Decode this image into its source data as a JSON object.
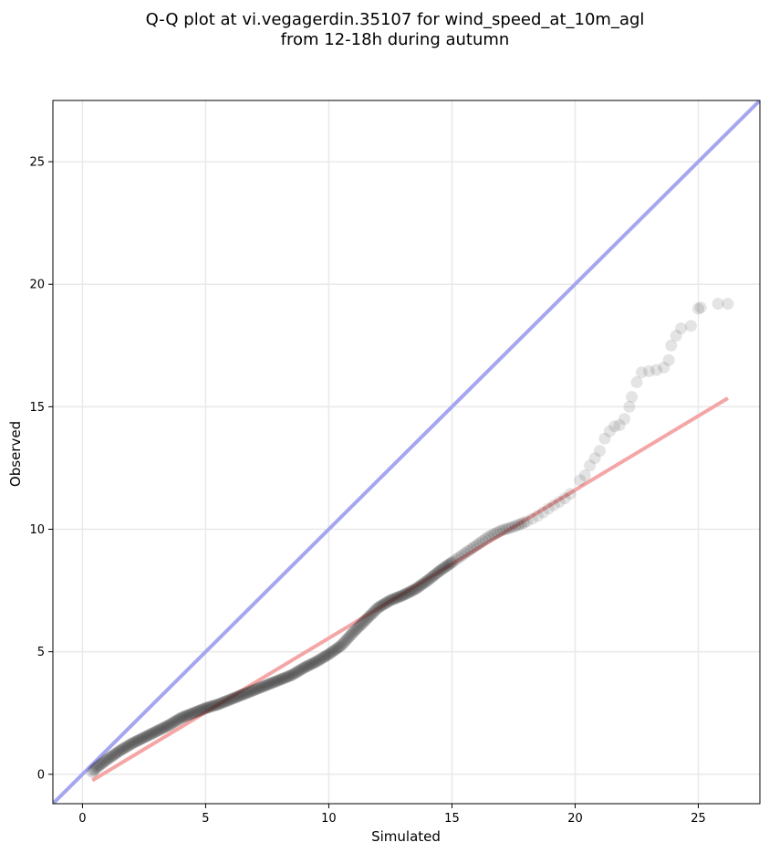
{
  "chart_data": {
    "type": "scatter",
    "title_lines": [
      "Q-Q plot at vi.vegagerdin.35107 for wind_speed_at_10m_agl",
      "from 12-18h during autumn"
    ],
    "xlabel": "Simulated",
    "ylabel": "Observed",
    "xlim": [
      -1.2,
      27.5
    ],
    "ylim": [
      -1.2,
      27.5
    ],
    "xticks": [
      0,
      5,
      10,
      15,
      20,
      25
    ],
    "yticks": [
      0,
      5,
      10,
      15,
      20,
      25
    ],
    "grid": true,
    "colors": {
      "identity_line": "#a6a6f0",
      "fit_line": "#f4a6a6",
      "points": "#222222"
    },
    "identity_line": {
      "x": [
        -1.2,
        27.5
      ],
      "y": [
        -1.2,
        27.5
      ]
    },
    "fit_line": {
      "x": [
        0.4,
        26.2
      ],
      "y": [
        -0.25,
        15.35
      ]
    },
    "quantile_anchors": {
      "x": [
        0.4,
        0.6,
        1.0,
        1.5,
        2.0,
        2.5,
        3.0,
        3.5,
        4.0,
        4.5,
        5.0,
        5.5,
        6.0,
        6.5,
        7.0,
        7.5,
        8.0,
        8.5,
        9.0,
        9.5,
        10.0,
        10.5,
        11.0,
        11.5,
        12.0,
        12.5,
        13.0,
        13.5,
        14.0,
        14.5,
        15.0,
        15.5,
        16.0,
        16.5,
        17.0,
        17.5,
        18.0,
        18.5,
        19.0,
        19.5,
        20.0
      ],
      "y": [
        0.1,
        0.3,
        0.6,
        0.95,
        1.25,
        1.5,
        1.75,
        2.0,
        2.3,
        2.5,
        2.7,
        2.85,
        3.05,
        3.25,
        3.45,
        3.65,
        3.85,
        4.05,
        4.35,
        4.6,
        4.9,
        5.25,
        5.8,
        6.3,
        6.8,
        7.1,
        7.3,
        7.55,
        7.9,
        8.3,
        8.65,
        9.0,
        9.35,
        9.7,
        9.95,
        10.1,
        10.3,
        10.55,
        10.9,
        11.2,
        11.6
      ]
    },
    "tail_points": {
      "x": [
        20.2,
        20.4,
        20.6,
        20.8,
        21.0,
        21.2,
        21.4,
        21.6,
        21.8,
        22.0,
        22.2,
        22.3,
        22.5,
        22.7,
        23.0,
        23.3,
        23.6,
        23.8,
        23.9,
        24.1,
        24.3,
        24.7,
        25.0,
        25.1,
        25.8,
        26.2
      ],
      "y": [
        12.0,
        12.2,
        12.6,
        12.9,
        13.2,
        13.7,
        14.0,
        14.2,
        14.25,
        14.5,
        15.0,
        15.4,
        16.0,
        16.4,
        16.45,
        16.5,
        16.6,
        16.9,
        17.5,
        17.9,
        18.2,
        18.3,
        19.0,
        19.05,
        19.2,
        19.2
      ]
    }
  }
}
